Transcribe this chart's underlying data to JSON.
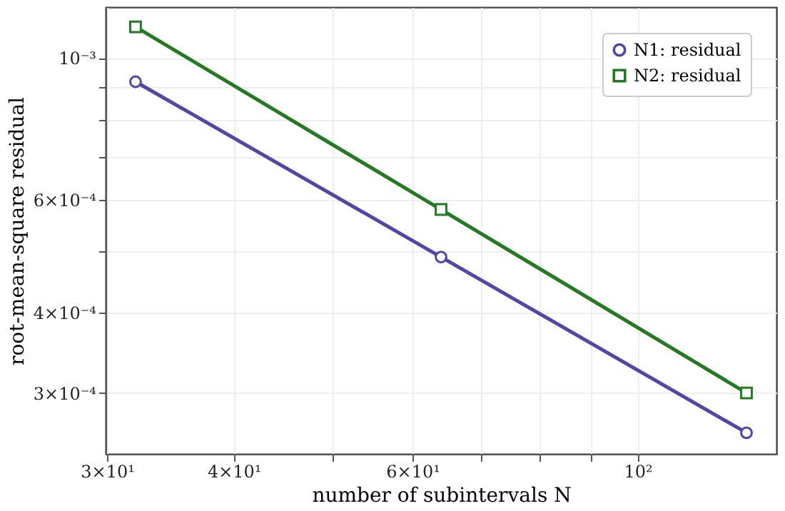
{
  "chart_data": {
    "type": "line",
    "xlabel": "number of subintervals N",
    "ylabel": "root-mean-square residual",
    "x": [
      32,
      64,
      128
    ],
    "series": [
      {
        "name": "N1: residual",
        "color": "#5446a8",
        "marker": "circle",
        "values": [
          0.000918,
          0.000489,
          0.00026
        ]
      },
      {
        "name": "N2: residual",
        "color": "#237a23",
        "marker": "square",
        "values": [
          0.001118,
          0.00058,
          0.0003
        ]
      }
    ],
    "log": "xy",
    "xlim": [
      29.9,
      137
    ],
    "ylim": [
      0.000241,
      0.0012
    ],
    "xticks": [
      {
        "value": 30,
        "label": "3×10¹"
      },
      {
        "value": 40,
        "label": "4×10¹"
      },
      {
        "value": 50,
        "label": null
      },
      {
        "value": 60,
        "label": "6×10¹"
      },
      {
        "value": 70,
        "label": null
      },
      {
        "value": 80,
        "label": null
      },
      {
        "value": 90,
        "label": null
      },
      {
        "value": 100,
        "label": "10²"
      }
    ],
    "yticks": [
      {
        "value": 0.0003,
        "label": "3×10⁻⁴"
      },
      {
        "value": 0.0004,
        "label": "4×10⁻⁴"
      },
      {
        "value": 0.0005,
        "label": null
      },
      {
        "value": 0.0006,
        "label": "6×10⁻⁴"
      },
      {
        "value": 0.0007,
        "label": null
      },
      {
        "value": 0.0008,
        "label": null
      },
      {
        "value": 0.0009,
        "label": null
      },
      {
        "value": 0.001,
        "label": "10⁻³"
      }
    ],
    "grid": true,
    "legend": "top right",
    "line_style": "solid"
  }
}
